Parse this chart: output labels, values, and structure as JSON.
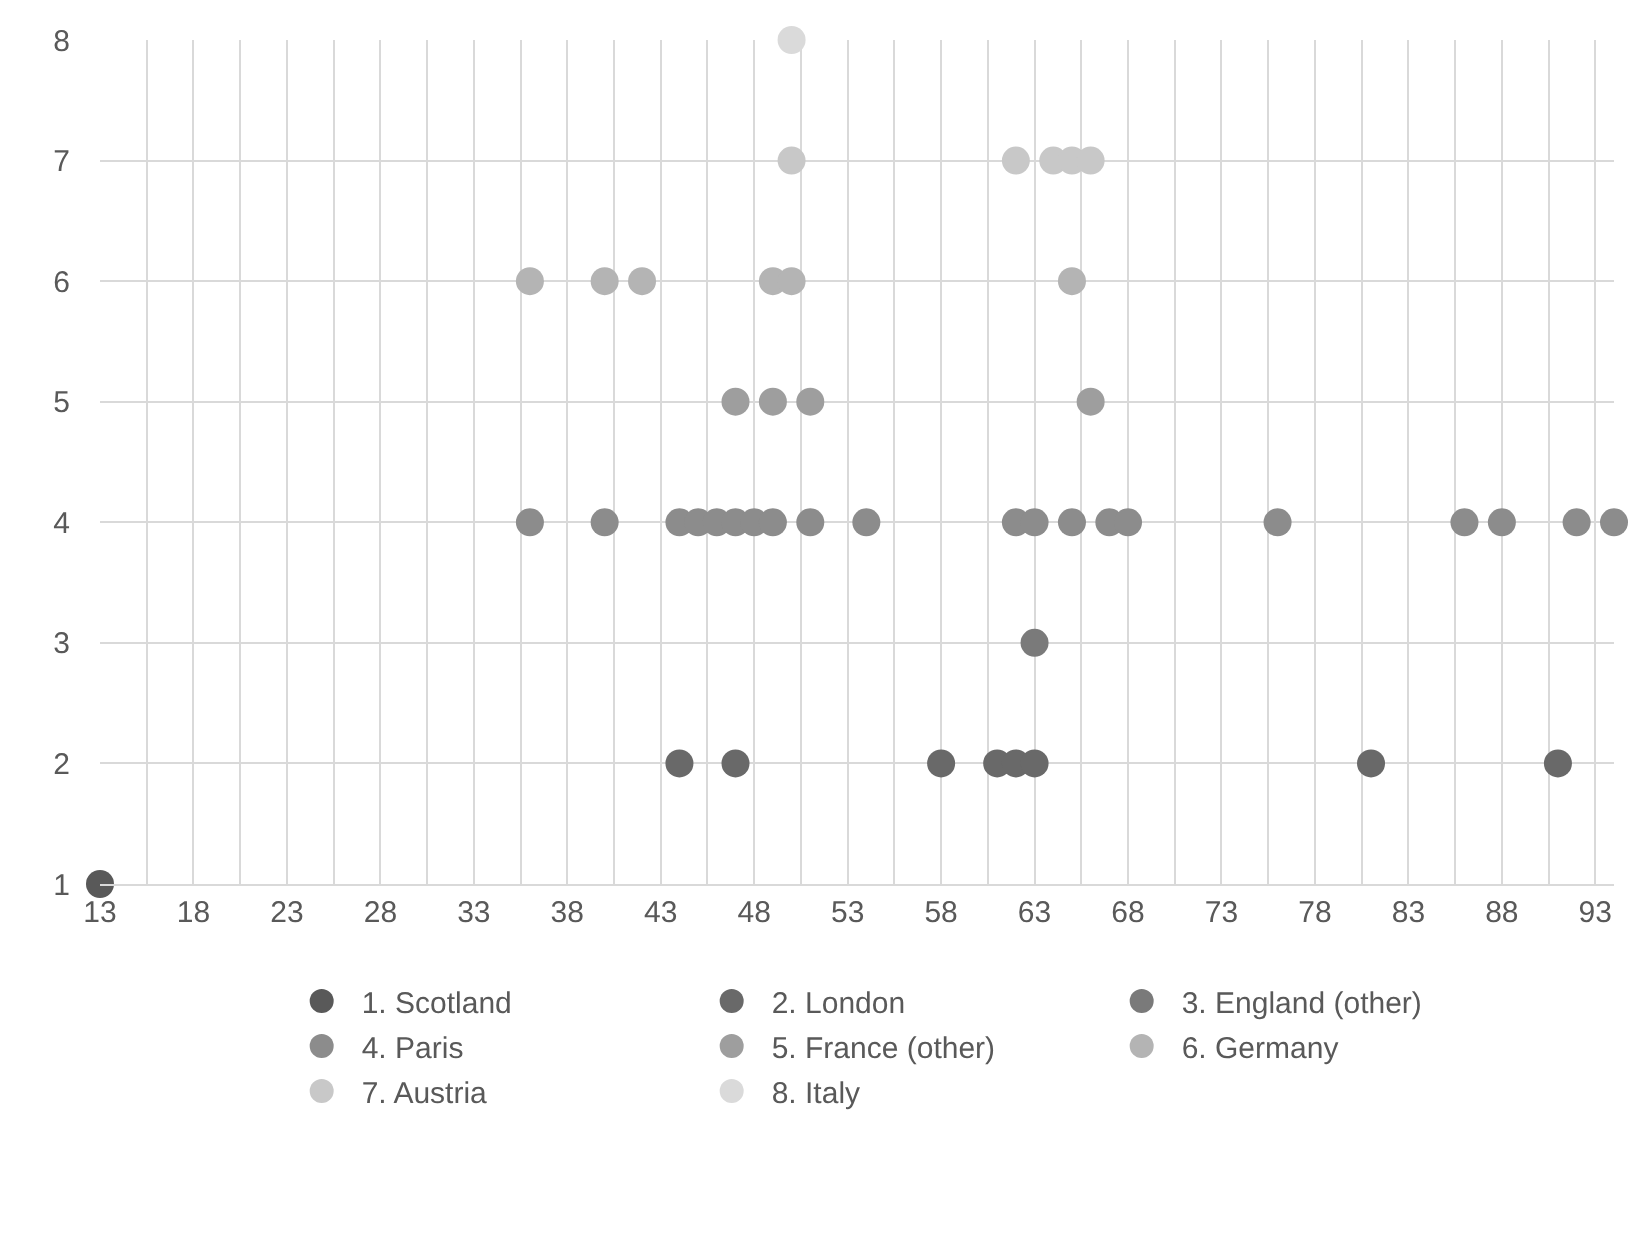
{
  "chart_data": {
    "type": "scatter",
    "xlim": [
      13,
      94
    ],
    "xticks": [
      13,
      18,
      23,
      28,
      33,
      38,
      43,
      48,
      53,
      58,
      63,
      68,
      73,
      78,
      83,
      88,
      93
    ],
    "ylim": [
      1,
      8
    ],
    "yticks": [
      1,
      2,
      3,
      4,
      5,
      6,
      7,
      8
    ],
    "grid": true,
    "legend": "bottom",
    "marker": "circle",
    "series": [
      {
        "name": "1. Scotland",
        "color": "#595959",
        "x": [
          13
        ],
        "values": [
          1
        ]
      },
      {
        "name": "2. London",
        "color": "#696969",
        "x": [
          44,
          47,
          58,
          61,
          62,
          63,
          81,
          91
        ],
        "values": [
          2,
          2,
          2,
          2,
          2,
          2,
          2,
          2
        ]
      },
      {
        "name": "3. England (other)",
        "color": "#7a7a7a",
        "x": [
          63
        ],
        "values": [
          3
        ]
      },
      {
        "name": "4. Paris",
        "color": "#8c8c8c",
        "x": [
          36,
          40,
          44,
          45,
          46,
          47,
          48,
          49,
          51,
          54,
          62,
          63,
          65,
          67,
          68,
          76,
          86,
          88,
          92,
          94
        ],
        "values": [
          4,
          4,
          4,
          4,
          4,
          4,
          4,
          4,
          4,
          4,
          4,
          4,
          4,
          4,
          4,
          4,
          4,
          4,
          4,
          4
        ]
      },
      {
        "name": "5. France (other)",
        "color": "#9e9e9e",
        "x": [
          47,
          49,
          51,
          66
        ],
        "values": [
          5,
          5,
          5,
          5
        ]
      },
      {
        "name": "6. Germany",
        "color": "#b4b4b4",
        "x": [
          36,
          40,
          42,
          49,
          50,
          65
        ],
        "values": [
          6,
          6,
          6,
          6,
          6,
          6
        ]
      },
      {
        "name": "7. Austria",
        "color": "#c8c8c8",
        "x": [
          50,
          62,
          64,
          65,
          66
        ],
        "values": [
          7,
          7,
          7,
          7,
          7
        ]
      },
      {
        "name": "8. Italy",
        "color": "#dadada",
        "x": [
          50
        ],
        "values": [
          8
        ]
      }
    ]
  }
}
